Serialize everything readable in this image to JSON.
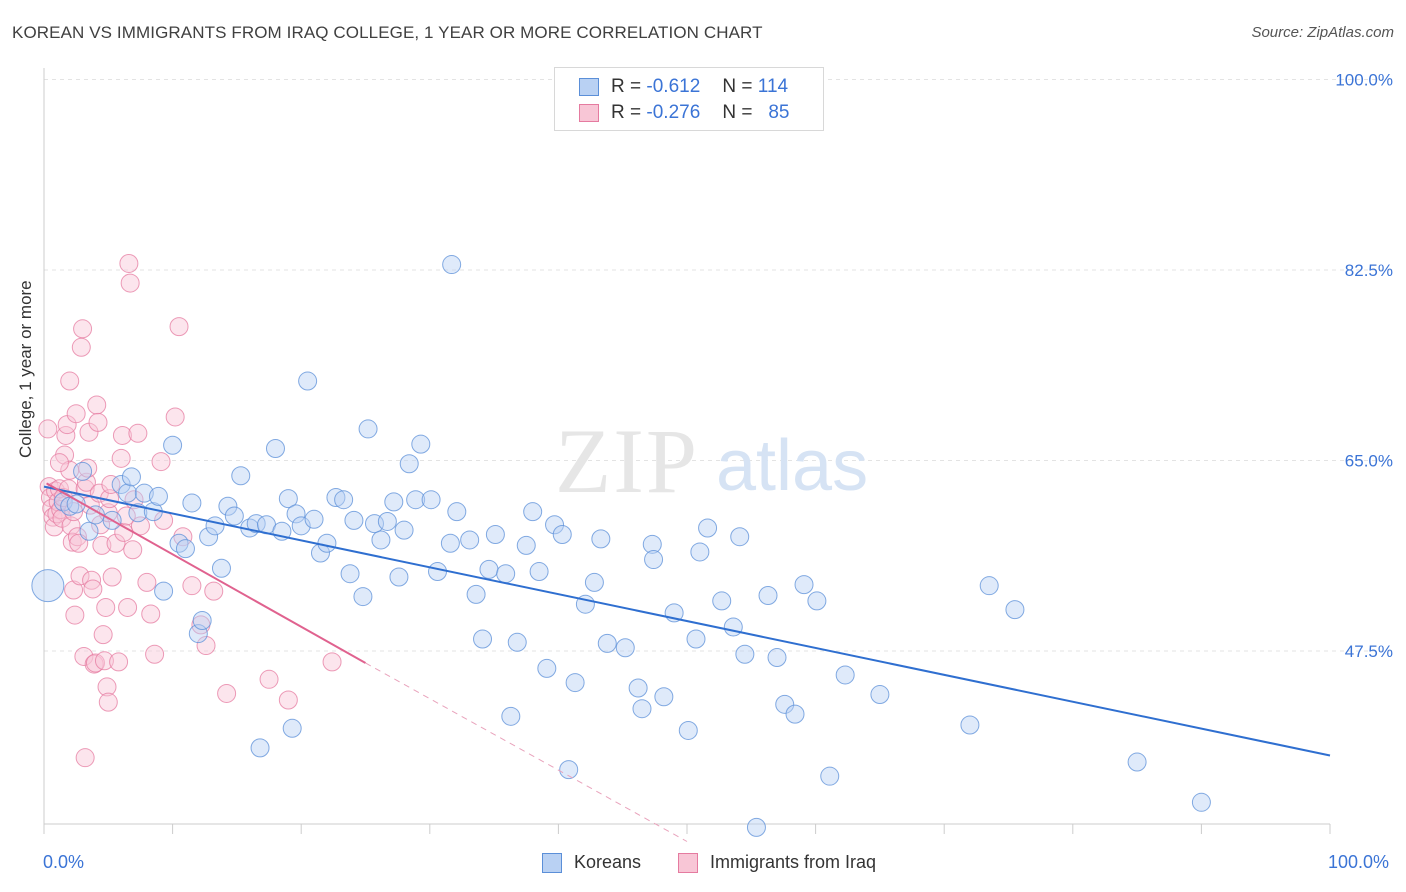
{
  "title": "KOREAN VS IMMIGRANTS FROM IRAQ COLLEGE, 1 YEAR OR MORE CORRELATION CHART",
  "source": "Source: ZipAtlas.com",
  "watermark": {
    "zip": "ZIP",
    "atlas": "atlas"
  },
  "legend_top": {
    "rows": [
      {
        "r_label": "R =",
        "r_value": "-0.612",
        "n_label": "N =",
        "n_value": "114",
        "color": "#5b8fd8",
        "fill": "#b9d1f3"
      },
      {
        "r_label": "R =",
        "r_value": "-0.276",
        "n_label": "N =",
        "n_value": "85",
        "color": "#e57ba0",
        "fill": "#f8c6d6"
      }
    ]
  },
  "legend_bottom": [
    {
      "label": "Koreans",
      "color": "#5b8fd8",
      "fill": "#b9d1f3"
    },
    {
      "label": "Immigrants from Iraq",
      "color": "#e57ba0",
      "fill": "#f8c6d6"
    }
  ],
  "x_tick_labels": {
    "left": "0.0%",
    "right": "100.0%"
  },
  "chart_data": {
    "type": "scatter",
    "title": "KOREAN VS IMMIGRANTS FROM IRAQ COLLEGE, 1 YEAR OR MORE CORRELATION CHART",
    "xlabel": "",
    "ylabel": "College, 1 year or more",
    "xlim": [
      0,
      100
    ],
    "ylim": [
      33,
      102
    ],
    "y_ticks": [
      47.5,
      65.0,
      82.5,
      100.0
    ],
    "y_tick_labels": [
      "47.5%",
      "65.0%",
      "82.5%",
      "100.0%"
    ],
    "grid": "horizontal dashed",
    "legend_position": "top-center",
    "series": [
      {
        "name": "Koreans",
        "color": "#5b8fd8",
        "fill": "#b9d1f3",
        "trend": {
          "x": [
            0,
            100
          ],
          "y": [
            62.6,
            37.9
          ]
        },
        "points": [
          [
            0.3,
            53.5
          ],
          [
            1.5,
            61.2
          ],
          [
            2.0,
            60.8
          ],
          [
            2.5,
            61.0
          ],
          [
            3.0,
            64.0
          ],
          [
            3.5,
            58.5
          ],
          [
            4.0,
            60.0
          ],
          [
            5.3,
            59.5
          ],
          [
            6.0,
            62.8
          ],
          [
            6.5,
            62.0
          ],
          [
            6.8,
            63.5
          ],
          [
            7.3,
            60.2
          ],
          [
            7.8,
            62.0
          ],
          [
            8.5,
            60.3
          ],
          [
            8.9,
            61.7
          ],
          [
            9.3,
            53.0
          ],
          [
            10.0,
            66.4
          ],
          [
            10.5,
            57.4
          ],
          [
            11.0,
            56.9
          ],
          [
            11.5,
            61.1
          ],
          [
            12.0,
            49.1
          ],
          [
            12.3,
            50.3
          ],
          [
            12.8,
            58.0
          ],
          [
            13.3,
            59.0
          ],
          [
            13.8,
            55.1
          ],
          [
            14.3,
            60.8
          ],
          [
            14.8,
            59.9
          ],
          [
            15.3,
            63.6
          ],
          [
            16.0,
            58.8
          ],
          [
            16.5,
            59.2
          ],
          [
            16.8,
            38.6
          ],
          [
            17.3,
            59.1
          ],
          [
            18.0,
            66.1
          ],
          [
            18.5,
            58.5
          ],
          [
            19.0,
            61.5
          ],
          [
            19.3,
            40.4
          ],
          [
            19.6,
            60.1
          ],
          [
            20.0,
            59.0
          ],
          [
            20.5,
            72.3
          ],
          [
            21.0,
            59.6
          ],
          [
            21.5,
            56.5
          ],
          [
            22.0,
            57.4
          ],
          [
            22.7,
            61.6
          ],
          [
            23.3,
            61.4
          ],
          [
            23.8,
            54.6
          ],
          [
            24.1,
            59.5
          ],
          [
            24.8,
            52.5
          ],
          [
            25.2,
            67.9
          ],
          [
            25.7,
            59.2
          ],
          [
            26.2,
            57.7
          ],
          [
            26.7,
            59.4
          ],
          [
            27.2,
            61.2
          ],
          [
            27.6,
            54.3
          ],
          [
            28.0,
            58.6
          ],
          [
            28.4,
            64.7
          ],
          [
            28.9,
            61.4
          ],
          [
            29.3,
            66.5
          ],
          [
            30.1,
            61.4
          ],
          [
            30.6,
            54.8
          ],
          [
            31.6,
            57.4
          ],
          [
            32.1,
            60.3
          ],
          [
            31.7,
            83.0
          ],
          [
            33.1,
            57.7
          ],
          [
            33.6,
            52.7
          ],
          [
            34.1,
            48.6
          ],
          [
            34.6,
            55.0
          ],
          [
            35.1,
            58.2
          ],
          [
            35.9,
            54.6
          ],
          [
            36.3,
            41.5
          ],
          [
            36.8,
            48.3
          ],
          [
            37.5,
            57.2
          ],
          [
            38.0,
            60.3
          ],
          [
            38.5,
            54.8
          ],
          [
            39.1,
            45.9
          ],
          [
            39.7,
            59.1
          ],
          [
            40.3,
            58.2
          ],
          [
            40.8,
            36.6
          ],
          [
            41.3,
            44.6
          ],
          [
            42.1,
            51.8
          ],
          [
            42.8,
            53.8
          ],
          [
            43.3,
            57.8
          ],
          [
            43.8,
            48.2
          ],
          [
            45.2,
            47.8
          ],
          [
            46.2,
            44.1
          ],
          [
            46.5,
            42.2
          ],
          [
            47.3,
            57.3
          ],
          [
            47.4,
            55.9
          ],
          [
            48.2,
            43.3
          ],
          [
            49.0,
            51.0
          ],
          [
            50.1,
            40.2
          ],
          [
            50.7,
            48.6
          ],
          [
            51.0,
            56.6
          ],
          [
            51.6,
            58.8
          ],
          [
            52.7,
            52.1
          ],
          [
            53.6,
            49.7
          ],
          [
            54.1,
            58.0
          ],
          [
            54.5,
            47.2
          ],
          [
            55.4,
            31.3
          ],
          [
            56.3,
            52.6
          ],
          [
            57.0,
            46.9
          ],
          [
            57.6,
            42.6
          ],
          [
            58.4,
            41.7
          ],
          [
            59.1,
            53.6
          ],
          [
            60.1,
            52.1
          ],
          [
            61.1,
            36.0
          ],
          [
            62.3,
            45.3
          ],
          [
            65.0,
            43.5
          ],
          [
            72.0,
            40.7
          ],
          [
            73.5,
            53.5
          ],
          [
            75.5,
            51.3
          ],
          [
            85.0,
            37.3
          ],
          [
            90.0,
            33.6
          ]
        ]
      },
      {
        "name": "Immigrants from Iraq",
        "color": "#e57ba0",
        "fill": "#f8c6d6",
        "trend": {
          "x": [
            0.2,
            25.0
          ],
          "y": [
            62.9,
            46.4
          ]
        },
        "trend_extension": {
          "x": [
            25.0,
            50.0
          ],
          "y": [
            46.4,
            30.0
          ]
        },
        "points": [
          [
            0.3,
            67.9
          ],
          [
            0.4,
            62.6
          ],
          [
            0.5,
            61.6
          ],
          [
            0.6,
            60.6
          ],
          [
            0.7,
            59.8
          ],
          [
            0.8,
            58.9
          ],
          [
            0.9,
            62.2
          ],
          [
            1.0,
            60.1
          ],
          [
            1.1,
            61.2
          ],
          [
            1.2,
            62.4
          ],
          [
            1.3,
            60.5
          ],
          [
            1.4,
            59.7
          ],
          [
            1.5,
            61.6
          ],
          [
            1.6,
            65.5
          ],
          [
            1.7,
            67.3
          ],
          [
            1.8,
            68.3
          ],
          [
            1.9,
            62.4
          ],
          [
            2.0,
            72.3
          ],
          [
            2.0,
            64.1
          ],
          [
            2.1,
            59.0
          ],
          [
            2.2,
            57.5
          ],
          [
            2.3,
            53.1
          ],
          [
            2.4,
            50.8
          ],
          [
            2.5,
            69.3
          ],
          [
            2.6,
            58.0
          ],
          [
            2.7,
            57.4
          ],
          [
            2.8,
            54.4
          ],
          [
            2.9,
            75.4
          ],
          [
            3.0,
            77.1
          ],
          [
            3.1,
            47.0
          ],
          [
            3.2,
            62.4
          ],
          [
            3.3,
            63.0
          ],
          [
            3.4,
            64.3
          ],
          [
            3.5,
            67.6
          ],
          [
            3.6,
            60.9
          ],
          [
            3.7,
            54.0
          ],
          [
            3.8,
            53.2
          ],
          [
            3.9,
            46.3
          ],
          [
            4.0,
            46.4
          ],
          [
            4.1,
            70.1
          ],
          [
            4.2,
            68.5
          ],
          [
            4.3,
            62.0
          ],
          [
            4.4,
            59.1
          ],
          [
            4.5,
            57.2
          ],
          [
            4.6,
            49.0
          ],
          [
            4.7,
            46.6
          ],
          [
            4.8,
            51.5
          ],
          [
            4.9,
            44.2
          ],
          [
            5.0,
            60.2
          ],
          [
            5.1,
            61.5
          ],
          [
            5.2,
            62.8
          ],
          [
            5.3,
            54.3
          ],
          [
            5.6,
            57.4
          ],
          [
            5.8,
            46.5
          ],
          [
            6.0,
            65.2
          ],
          [
            6.1,
            67.3
          ],
          [
            6.2,
            58.4
          ],
          [
            6.4,
            59.9
          ],
          [
            6.5,
            51.5
          ],
          [
            6.6,
            83.1
          ],
          [
            6.7,
            81.3
          ],
          [
            6.9,
            56.8
          ],
          [
            7.0,
            61.4
          ],
          [
            7.3,
            67.5
          ],
          [
            7.5,
            59.0
          ],
          [
            8.0,
            53.8
          ],
          [
            8.3,
            50.9
          ],
          [
            8.6,
            47.2
          ],
          [
            9.1,
            64.9
          ],
          [
            9.3,
            59.5
          ],
          [
            10.2,
            69.0
          ],
          [
            10.5,
            77.3
          ],
          [
            10.8,
            58.0
          ],
          [
            11.5,
            53.5
          ],
          [
            12.2,
            49.9
          ],
          [
            12.6,
            48.0
          ],
          [
            13.2,
            53.0
          ],
          [
            14.2,
            43.6
          ],
          [
            17.5,
            44.9
          ],
          [
            19.0,
            43.0
          ],
          [
            22.4,
            46.5
          ],
          [
            3.2,
            37.7
          ],
          [
            1.2,
            64.8
          ],
          [
            2.3,
            60.3
          ],
          [
            5.0,
            42.8
          ]
        ]
      }
    ]
  }
}
